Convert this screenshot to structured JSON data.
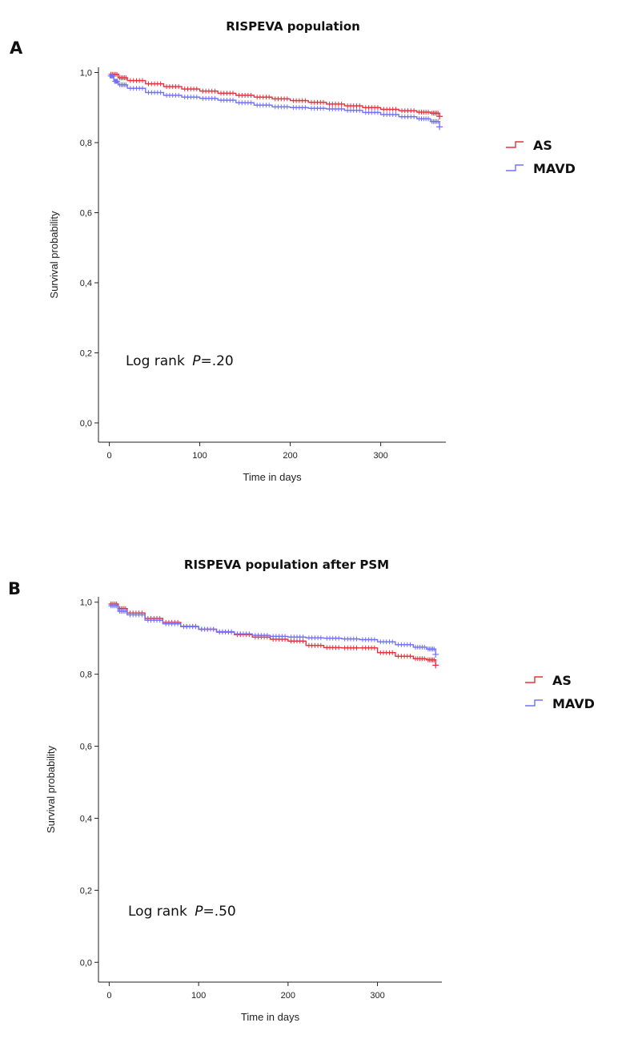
{
  "chart_data": [
    {
      "type": "line",
      "panel_letter": "A",
      "title": "RISPEVA population",
      "xlabel": "Time in days",
      "ylabel": "Survival probability",
      "xlim": [
        -12,
        372
      ],
      "ylim": [
        -0.055,
        1.015
      ],
      "xticks": [
        0,
        100,
        200,
        300
      ],
      "xtick_labels": [
        "0",
        "100",
        "200",
        "300"
      ],
      "yticks": [
        0.0,
        0.2,
        0.4,
        0.6,
        0.8,
        1.0
      ],
      "ytick_labels": [
        "0,0",
        "0,2",
        "0,4",
        "0,6",
        "0,8",
        "1,0"
      ],
      "annotation": {
        "prefix": "Log rank ",
        "p": "P",
        "value": "=.20"
      },
      "legend_position": "right",
      "series": [
        {
          "name": "AS",
          "color": "#e8303a",
          "x": [
            0,
            10,
            20,
            40,
            60,
            80,
            100,
            120,
            140,
            160,
            180,
            200,
            220,
            240,
            260,
            280,
            300,
            320,
            340,
            355,
            365
          ],
          "y": [
            0.995,
            0.985,
            0.977,
            0.968,
            0.96,
            0.953,
            0.947,
            0.941,
            0.935,
            0.93,
            0.925,
            0.92,
            0.915,
            0.91,
            0.905,
            0.9,
            0.895,
            0.891,
            0.887,
            0.884,
            0.875
          ]
        },
        {
          "name": "MAVD",
          "color": "#7070ff",
          "x": [
            0,
            5,
            10,
            20,
            40,
            60,
            80,
            100,
            120,
            140,
            160,
            180,
            200,
            220,
            240,
            260,
            280,
            300,
            320,
            340,
            355,
            365
          ],
          "y": [
            0.99,
            0.975,
            0.965,
            0.955,
            0.943,
            0.935,
            0.93,
            0.926,
            0.921,
            0.914,
            0.907,
            0.902,
            0.9,
            0.898,
            0.896,
            0.892,
            0.886,
            0.88,
            0.874,
            0.868,
            0.86,
            0.845
          ]
        }
      ]
    },
    {
      "type": "line",
      "panel_letter": "B",
      "title": "RISPEVA population after PSM",
      "xlabel": "Time in days",
      "ylabel": "Survival probability",
      "xlim": [
        -12,
        372
      ],
      "ylim": [
        -0.055,
        1.015
      ],
      "xticks": [
        0,
        100,
        200,
        300
      ],
      "xtick_labels": [
        "0",
        "100",
        "200",
        "300"
      ],
      "yticks": [
        0.0,
        0.2,
        0.4,
        0.6,
        0.8,
        1.0
      ],
      "ytick_labels": [
        "0,0",
        "0,2",
        "0,4",
        "0,6",
        "0,8",
        "1,0"
      ],
      "annotation": {
        "prefix": "Log rank ",
        "p": "P",
        "value": "=.50"
      },
      "legend_position": "right",
      "series": [
        {
          "name": "AS",
          "color": "#e8303a",
          "x": [
            0,
            10,
            20,
            40,
            60,
            80,
            100,
            120,
            140,
            160,
            180,
            200,
            220,
            240,
            260,
            280,
            300,
            320,
            340,
            355,
            365
          ],
          "y": [
            0.995,
            0.982,
            0.97,
            0.955,
            0.944,
            0.933,
            0.925,
            0.917,
            0.91,
            0.903,
            0.897,
            0.892,
            0.88,
            0.874,
            0.873,
            0.873,
            0.86,
            0.85,
            0.843,
            0.84,
            0.825
          ]
        },
        {
          "name": "MAVD",
          "color": "#7070ff",
          "x": [
            0,
            10,
            20,
            40,
            60,
            80,
            100,
            120,
            140,
            160,
            180,
            200,
            220,
            240,
            260,
            280,
            300,
            320,
            340,
            355,
            365
          ],
          "y": [
            0.99,
            0.975,
            0.965,
            0.95,
            0.94,
            0.932,
            0.925,
            0.918,
            0.912,
            0.908,
            0.905,
            0.903,
            0.901,
            0.9,
            0.898,
            0.896,
            0.89,
            0.882,
            0.875,
            0.87,
            0.855
          ]
        }
      ]
    }
  ]
}
